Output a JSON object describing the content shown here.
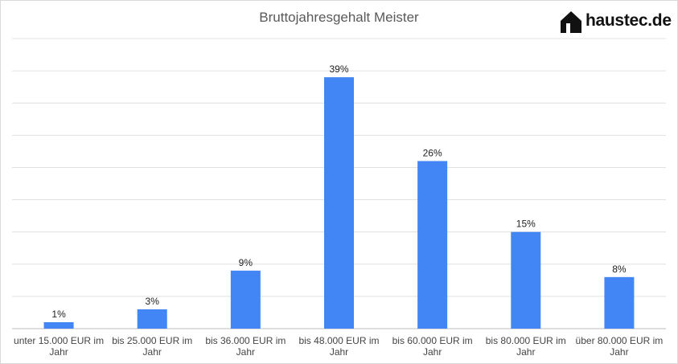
{
  "brand": {
    "name": "haustec.de",
    "icon": "house-icon"
  },
  "chart_data": {
    "type": "bar",
    "title": "Bruttojahresgehalt Meister",
    "categories": [
      "unter 15.000 EUR im Jahr",
      "bis 25.000 EUR im Jahr",
      "bis 36.000 EUR im Jahr",
      "bis 48.000 EUR im Jahr",
      "bis 60.000 EUR im Jahr",
      "bis 80.000 EUR im Jahr",
      "über 80.000 EUR im Jahr"
    ],
    "values": [
      1,
      3,
      9,
      39,
      26,
      15,
      8
    ],
    "data_labels": [
      "1%",
      "3%",
      "9%",
      "39%",
      "26%",
      "15%",
      "8%"
    ],
    "unit": "%",
    "ylim": [
      0,
      45
    ],
    "grid": true,
    "legend": "none",
    "color": "#4285f4"
  }
}
